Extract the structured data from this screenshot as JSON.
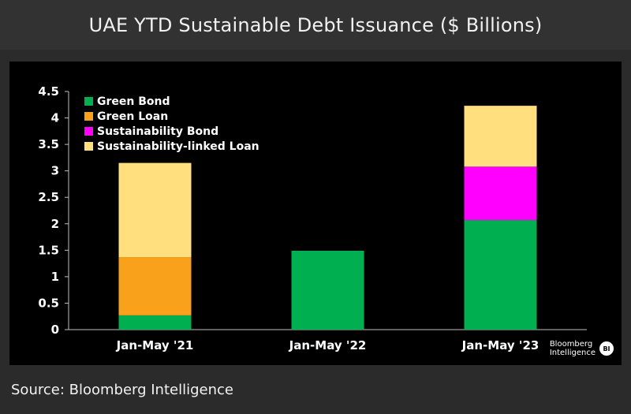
{
  "header": {
    "title": "UAE YTD Sustainable Debt Issuance ($ Billions)"
  },
  "brand": {
    "line1": "Bloomberg",
    "line2": "Intelligence",
    "badge": "BI"
  },
  "footer": {
    "source": "Source: Bloomberg Intelligence"
  },
  "chart_data": {
    "type": "bar",
    "stacked": true,
    "title": "UAE YTD Sustainable Debt Issuance ($ Billions)",
    "xlabel": "",
    "ylabel": "",
    "categories": [
      "Jan-May '21",
      "Jan-May '22",
      "Jan-May '23"
    ],
    "ylim": [
      0,
      4.5
    ],
    "yticks": [
      "0",
      "0.5",
      "1",
      "1.5",
      "2",
      "2.5",
      "3",
      "3.5",
      "4",
      "4.5"
    ],
    "grid": false,
    "legend_position": "top-left",
    "series": [
      {
        "name": "Green Bond",
        "color": "#00b050",
        "values": [
          0.27,
          1.49,
          2.07
        ]
      },
      {
        "name": "Green Loan",
        "color": "#f9a11b",
        "values": [
          1.1,
          0,
          0
        ]
      },
      {
        "name": "Sustainability Bond",
        "color": "#ff00ff",
        "values": [
          0,
          0,
          1.01
        ]
      },
      {
        "name": "Sustainability-linked Loan",
        "color": "#ffdf7e",
        "values": [
          1.78,
          0,
          1.15
        ]
      }
    ]
  }
}
